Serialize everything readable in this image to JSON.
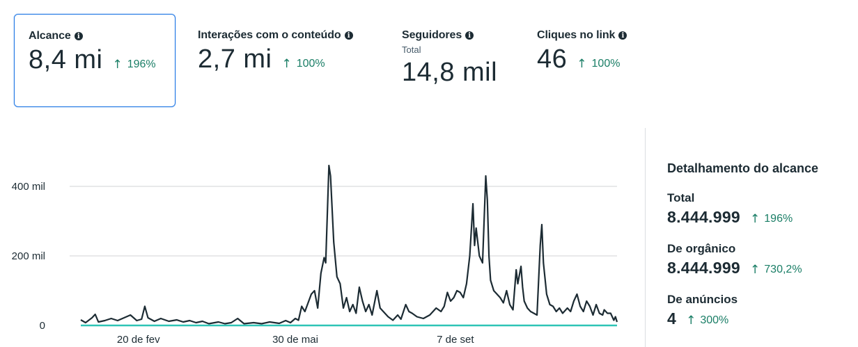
{
  "metrics": [
    {
      "title": "Alcance",
      "subtitle": "",
      "value": "8,4 mi",
      "delta": "196%"
    },
    {
      "title": "Interações com o conteúdo",
      "subtitle": "",
      "value": "2,7 mi",
      "delta": "100%"
    },
    {
      "title": "Seguidores",
      "subtitle": "Total",
      "value": "14,8 mil",
      "delta": ""
    },
    {
      "title": "Cliques no link",
      "subtitle": "",
      "value": "46",
      "delta": "100%"
    }
  ],
  "breakdown": {
    "title": "Detalhamento do alcance",
    "items": [
      {
        "label": "Total",
        "value": "8.444.999",
        "delta": "196%"
      },
      {
        "label": "De orgânico",
        "value": "8.444.999",
        "delta": "730,2%"
      },
      {
        "label": "De anúncios",
        "value": "4",
        "delta": "300%"
      }
    ]
  },
  "colors": {
    "line": "#1c2b33",
    "baseline": "#2ec4b6",
    "positive": "#1a7e66",
    "selected_border": "#1b74e4"
  },
  "chart_data": {
    "type": "line",
    "title": "",
    "xlabel": "",
    "ylabel": "",
    "y_tick_labels": [
      "0",
      "200 mil",
      "400 mil"
    ],
    "y_ticks": [
      0,
      200000,
      400000
    ],
    "x_tick_labels": [
      "20 de fev",
      "30 de mai",
      "7 de set"
    ],
    "x_ticks": [
      36,
      134,
      234
    ],
    "ylim": [
      0,
      440000
    ],
    "xlim": [
      0,
      300
    ],
    "series": [
      {
        "name": "Alcance",
        "color": "#1c2b33",
        "points": [
          [
            0,
            16000
          ],
          [
            3,
            8000
          ],
          [
            7,
            22000
          ],
          [
            9,
            32000
          ],
          [
            11,
            10000
          ],
          [
            15,
            14000
          ],
          [
            19,
            20000
          ],
          [
            23,
            14000
          ],
          [
            27,
            22000
          ],
          [
            31,
            30000
          ],
          [
            35,
            14000
          ],
          [
            38,
            18000
          ],
          [
            40,
            55000
          ],
          [
            42,
            22000
          ],
          [
            46,
            12000
          ],
          [
            50,
            20000
          ],
          [
            55,
            12000
          ],
          [
            60,
            16000
          ],
          [
            64,
            10000
          ],
          [
            68,
            14000
          ],
          [
            72,
            8000
          ],
          [
            76,
            12000
          ],
          [
            80,
            5000
          ],
          [
            86,
            10000
          ],
          [
            90,
            5000
          ],
          [
            94,
            8000
          ],
          [
            98,
            20000
          ],
          [
            102,
            5000
          ],
          [
            108,
            8000
          ],
          [
            113,
            5000
          ],
          [
            118,
            10000
          ],
          [
            124,
            6000
          ],
          [
            128,
            14000
          ],
          [
            131,
            8000
          ],
          [
            134,
            20000
          ],
          [
            136,
            15000
          ],
          [
            138,
            55000
          ],
          [
            140,
            40000
          ],
          [
            144,
            90000
          ],
          [
            146,
            100000
          ],
          [
            148,
            50000
          ],
          [
            150,
            150000
          ],
          [
            152,
            195000
          ],
          [
            153,
            180000
          ],
          [
            155,
            460000
          ],
          [
            156,
            430000
          ],
          [
            158,
            240000
          ],
          [
            160,
            140000
          ],
          [
            162,
            120000
          ],
          [
            164,
            50000
          ],
          [
            166,
            80000
          ],
          [
            168,
            40000
          ],
          [
            170,
            60000
          ],
          [
            172,
            35000
          ],
          [
            174,
            110000
          ],
          [
            176,
            70000
          ],
          [
            178,
            40000
          ],
          [
            180,
            60000
          ],
          [
            182,
            30000
          ],
          [
            185,
            100000
          ],
          [
            187,
            50000
          ],
          [
            189,
            40000
          ],
          [
            192,
            25000
          ],
          [
            195,
            15000
          ],
          [
            198,
            30000
          ],
          [
            200,
            18000
          ],
          [
            203,
            60000
          ],
          [
            205,
            40000
          ],
          [
            207,
            35000
          ],
          [
            210,
            25000
          ],
          [
            214,
            20000
          ],
          [
            218,
            30000
          ],
          [
            222,
            50000
          ],
          [
            225,
            40000
          ],
          [
            227,
            55000
          ],
          [
            229,
            95000
          ],
          [
            231,
            70000
          ],
          [
            233,
            80000
          ],
          [
            235,
            100000
          ],
          [
            237,
            95000
          ],
          [
            239,
            80000
          ],
          [
            241,
            120000
          ],
          [
            243,
            200000
          ],
          [
            245,
            350000
          ],
          [
            246,
            230000
          ],
          [
            247,
            280000
          ],
          [
            248,
            240000
          ],
          [
            249,
            200000
          ],
          [
            251,
            180000
          ],
          [
            253,
            430000
          ],
          [
            254,
            360000
          ],
          [
            255,
            200000
          ],
          [
            256,
            130000
          ],
          [
            258,
            100000
          ],
          [
            262,
            80000
          ],
          [
            264,
            65000
          ],
          [
            266,
            100000
          ],
          [
            268,
            60000
          ],
          [
            270,
            45000
          ],
          [
            272,
            160000
          ],
          [
            273,
            120000
          ],
          [
            275,
            170000
          ],
          [
            276,
            110000
          ],
          [
            277,
            70000
          ],
          [
            279,
            50000
          ],
          [
            281,
            40000
          ],
          [
            283,
            35000
          ],
          [
            285,
            30000
          ],
          [
            287,
            230000
          ],
          [
            288,
            290000
          ],
          [
            289,
            180000
          ],
          [
            291,
            90000
          ],
          [
            293,
            60000
          ],
          [
            295,
            55000
          ],
          [
            297,
            40000
          ],
          [
            299,
            50000
          ],
          [
            301,
            35000
          ],
          [
            304,
            50000
          ],
          [
            306,
            40000
          ],
          [
            308,
            70000
          ],
          [
            310,
            90000
          ],
          [
            312,
            55000
          ],
          [
            314,
            40000
          ],
          [
            316,
            70000
          ],
          [
            318,
            55000
          ],
          [
            320,
            30000
          ],
          [
            322,
            60000
          ],
          [
            324,
            35000
          ],
          [
            326,
            30000
          ],
          [
            327,
            45000
          ],
          [
            329,
            35000
          ],
          [
            331,
            35000
          ],
          [
            333,
            15000
          ],
          [
            334,
            25000
          ],
          [
            335,
            10000
          ]
        ]
      },
      {
        "name": "Anúncios",
        "color": "#2ec4b6",
        "points": [
          [
            0,
            0
          ],
          [
            335,
            0
          ]
        ]
      }
    ]
  }
}
